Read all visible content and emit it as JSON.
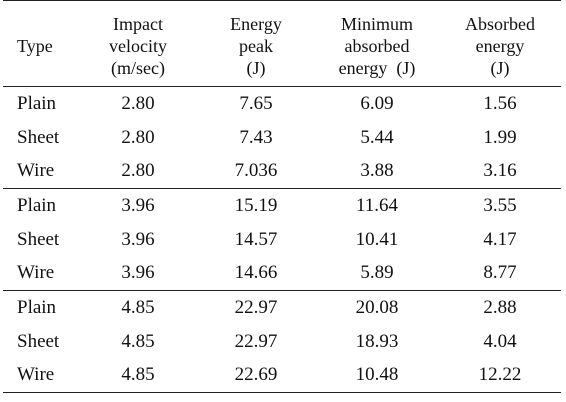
{
  "table": {
    "headers": [
      {
        "lines": [
          "Type"
        ]
      },
      {
        "lines": [
          "Impact",
          "velocity",
          "(m/sec)"
        ]
      },
      {
        "lines": [
          "Energy",
          "peak",
          "(J)"
        ]
      },
      {
        "lines": [
          "Minimum",
          "absorbed",
          "energy  (J)"
        ]
      },
      {
        "lines": [
          "Absorbed",
          "energy",
          "(J)"
        ]
      }
    ],
    "groups": [
      {
        "rows": [
          [
            "Plain",
            "2.80",
            "7.65",
            "6.09",
            "1.56"
          ],
          [
            "Sheet",
            "2.80",
            "7.43",
            "5.44",
            "1.99"
          ],
          [
            "Wire",
            "2.80",
            "7.036",
            "3.88",
            "3.16"
          ]
        ]
      },
      {
        "rows": [
          [
            "Plain",
            "3.96",
            "15.19",
            "11.64",
            "3.55"
          ],
          [
            "Sheet",
            "3.96",
            "14.57",
            "10.41",
            "4.17"
          ],
          [
            "Wire",
            "3.96",
            "14.66",
            "5.89",
            "8.77"
          ]
        ]
      },
      {
        "rows": [
          [
            "Plain",
            "4.85",
            "22.97",
            "20.08",
            "2.88"
          ],
          [
            "Sheet",
            "4.85",
            "22.97",
            "18.93",
            "4.04"
          ],
          [
            "Wire",
            "4.85",
            "22.69",
            "10.48",
            "12.22"
          ]
        ]
      }
    ]
  }
}
